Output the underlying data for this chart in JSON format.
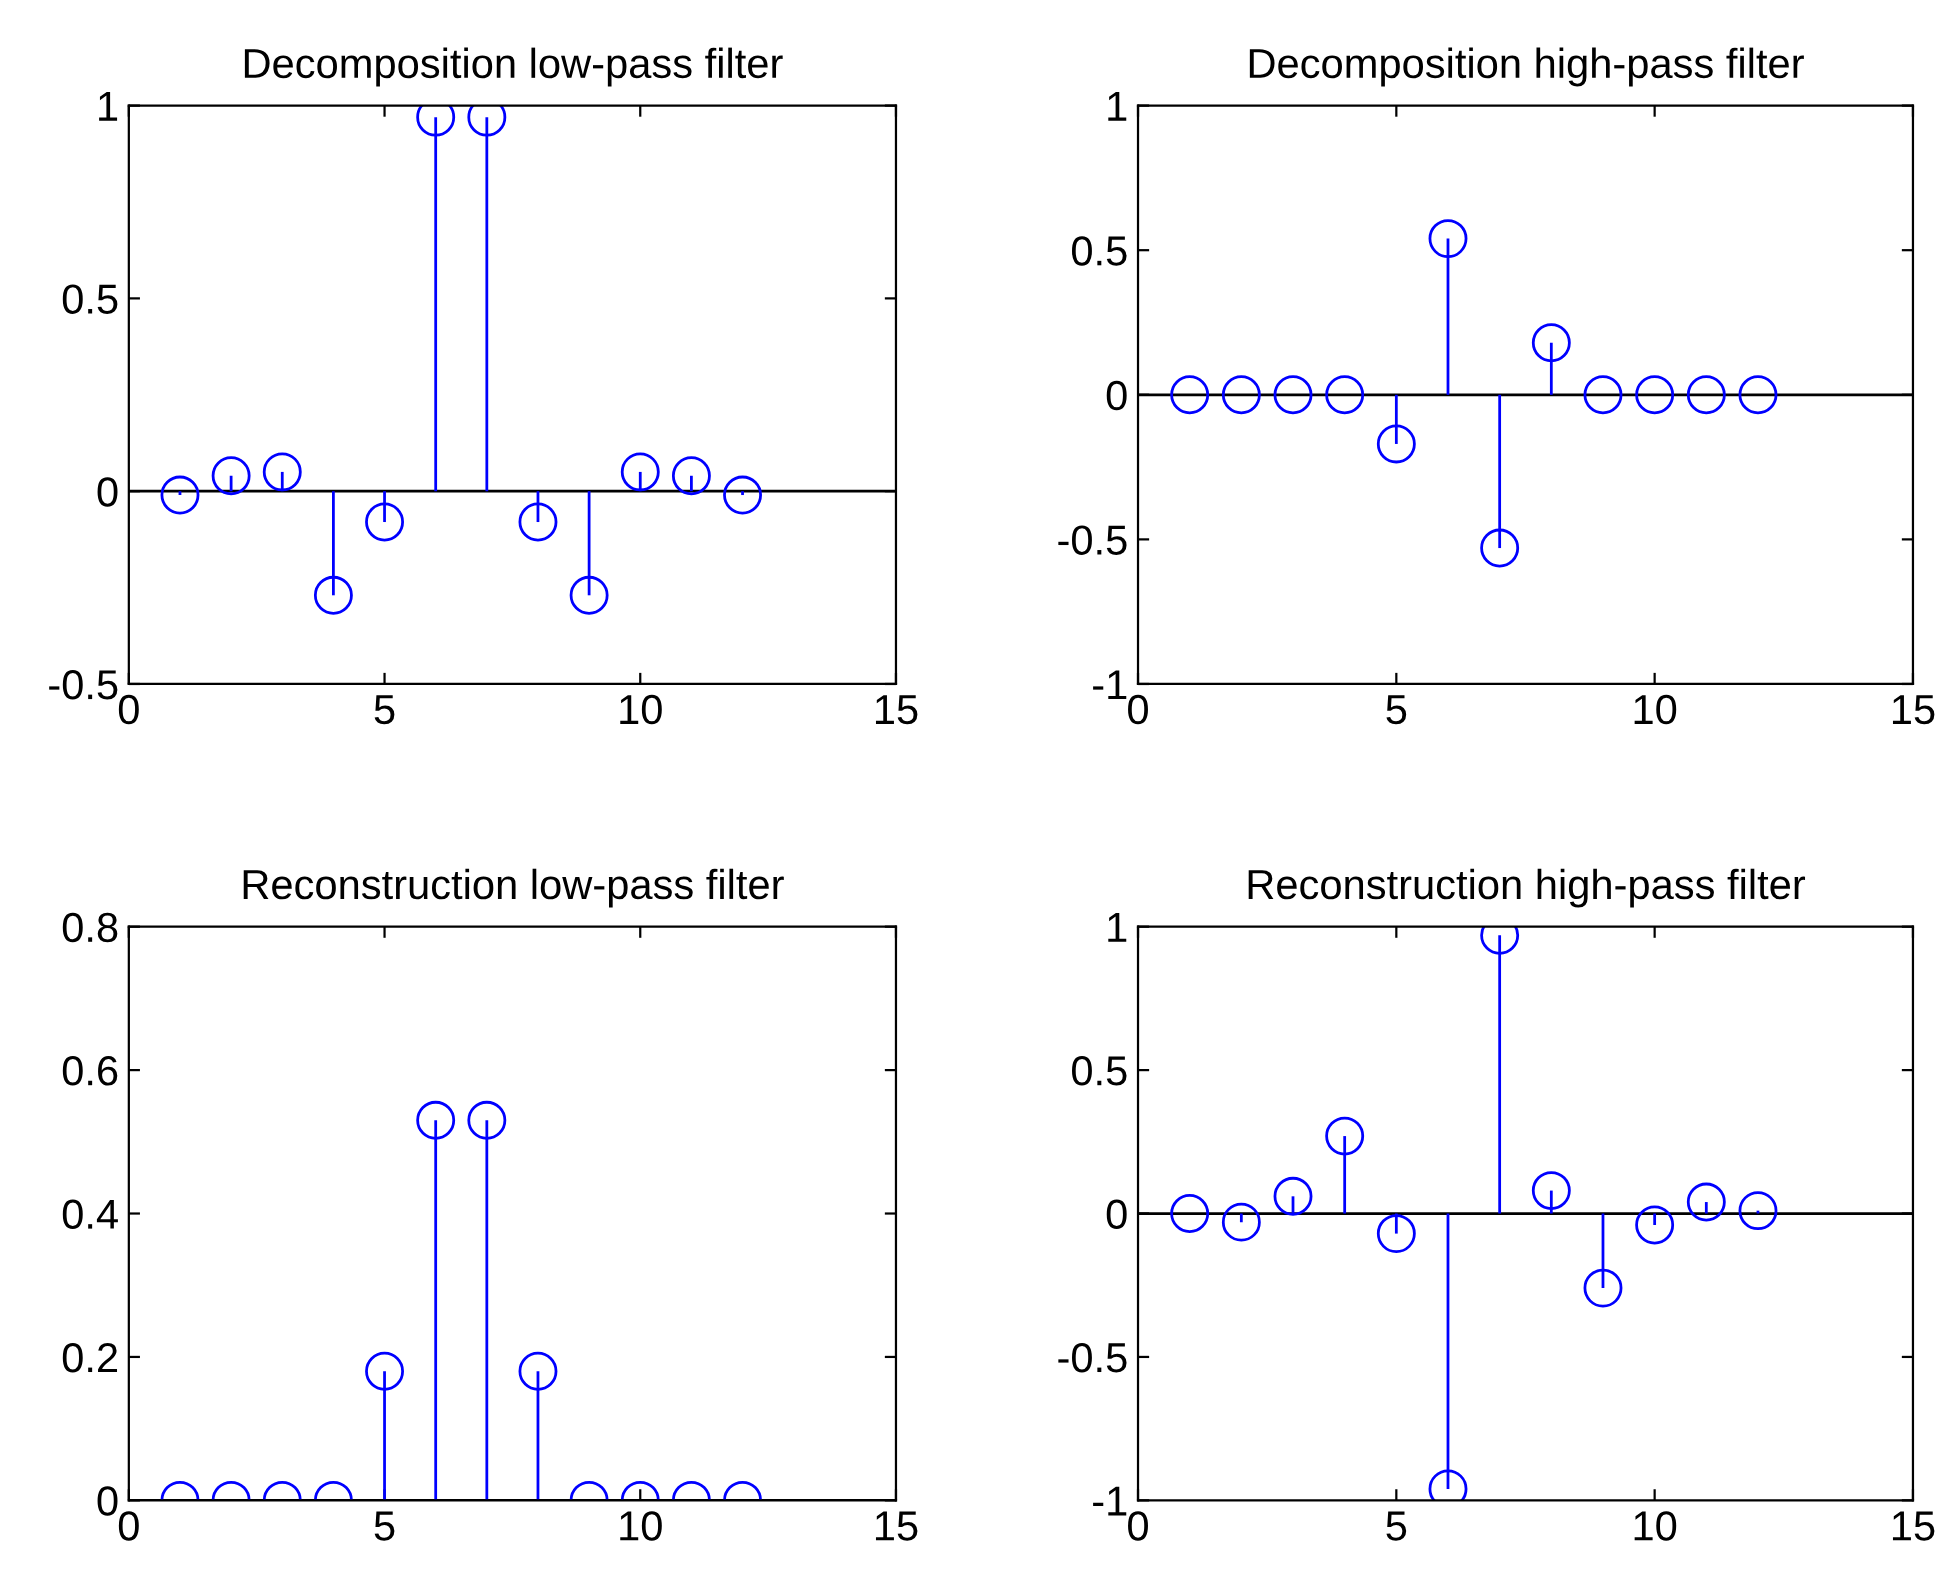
{
  "chart_data": [
    {
      "type": "lollipop",
      "title": "Decomposition low-pass filter",
      "x": [
        1,
        2,
        3,
        4,
        5,
        6,
        7,
        8,
        9,
        10,
        11,
        12
      ],
      "values": [
        -0.01,
        0.04,
        0.05,
        -0.27,
        -0.08,
        0.97,
        0.97,
        -0.08,
        -0.27,
        0.05,
        0.04,
        -0.01
      ],
      "color": "#0000ff",
      "marker": "circle",
      "xlim": [
        0,
        15
      ],
      "xticks": [
        0,
        5,
        10,
        15
      ],
      "ylim": [
        -0.5,
        1
      ],
      "yticks": [
        -0.5,
        0,
        0.5,
        1
      ],
      "grid": false,
      "ref_lines": [
        {
          "axis": "y",
          "value": 0,
          "color": "#000000"
        }
      ]
    },
    {
      "type": "lollipop",
      "title": "Decomposition high-pass filter",
      "x": [
        1,
        2,
        3,
        4,
        5,
        6,
        7,
        8,
        9,
        10,
        11,
        12
      ],
      "values": [
        0,
        0,
        0,
        0,
        -0.17,
        0.54,
        -0.53,
        0.18,
        0,
        0,
        0,
        0
      ],
      "color": "#0000ff",
      "marker": "circle",
      "xlim": [
        0,
        15
      ],
      "xticks": [
        0,
        5,
        10,
        15
      ],
      "ylim": [
        -1,
        1
      ],
      "yticks": [
        -1,
        -0.5,
        0,
        0.5,
        1
      ],
      "grid": false,
      "ref_lines": [
        {
          "axis": "y",
          "value": 0,
          "color": "#000000"
        }
      ]
    },
    {
      "type": "lollipop",
      "title": "Reconstruction low-pass filter",
      "x": [
        1,
        2,
        3,
        4,
        5,
        6,
        7,
        8,
        9,
        10,
        11,
        12
      ],
      "values": [
        0,
        0,
        0,
        0,
        0.18,
        0.53,
        0.53,
        0.18,
        0,
        0,
        0,
        0
      ],
      "color": "#0000ff",
      "marker": "circle",
      "xlim": [
        0,
        15
      ],
      "xticks": [
        0,
        5,
        10,
        15
      ],
      "ylim": [
        0,
        0.8
      ],
      "yticks": [
        0,
        0.2,
        0.4,
        0.6,
        0.8
      ],
      "grid": false,
      "ref_lines": [
        {
          "axis": "y",
          "value": 0,
          "color": "#000000"
        }
      ]
    },
    {
      "type": "lollipop",
      "title": "Reconstruction high-pass filter",
      "x": [
        1,
        2,
        3,
        4,
        5,
        6,
        7,
        8,
        9,
        10,
        11,
        12
      ],
      "values": [
        0,
        -0.03,
        0.06,
        0.27,
        -0.07,
        -0.96,
        0.97,
        0.08,
        -0.26,
        -0.04,
        0.04,
        0.01
      ],
      "color": "#0000ff",
      "marker": "circle",
      "xlim": [
        0,
        15
      ],
      "xticks": [
        0,
        5,
        10,
        15
      ],
      "ylim": [
        -1,
        1
      ],
      "yticks": [
        -1,
        -0.5,
        0,
        0.5,
        1
      ],
      "grid": false,
      "ref_lines": [
        {
          "axis": "y",
          "value": 0,
          "color": "#000000"
        }
      ]
    }
  ]
}
